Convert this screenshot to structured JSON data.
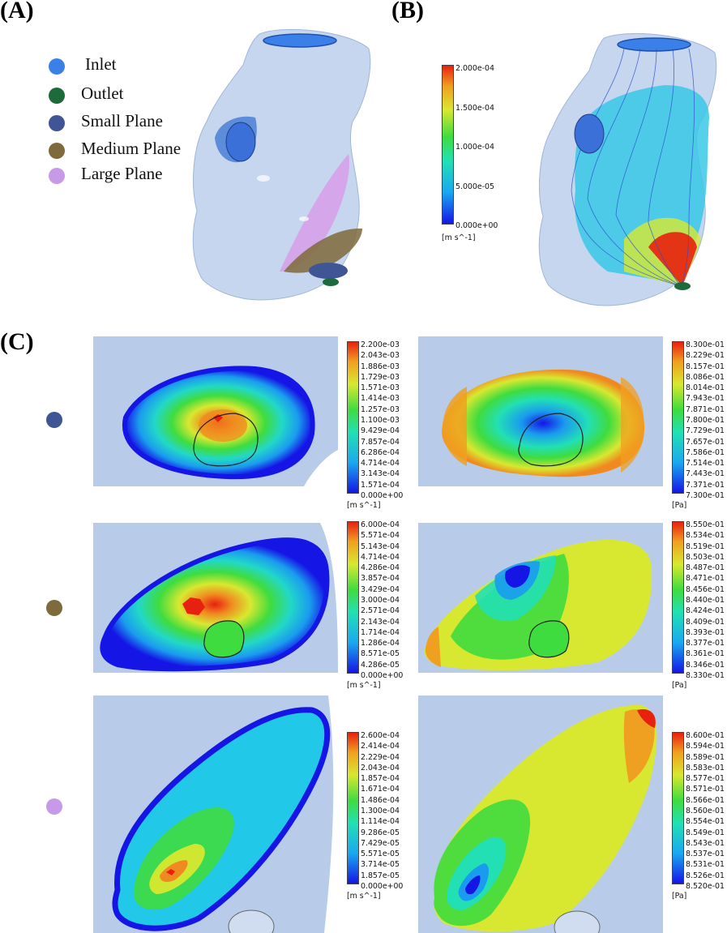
{
  "panels": {
    "a": "(A)",
    "b": "(B)",
    "c": "(C)"
  },
  "legend": [
    {
      "label": "Inlet",
      "color": "#3a80e8"
    },
    {
      "label": "Outlet",
      "color": "#1d6b3a"
    },
    {
      "label": "Small Plane",
      "color": "#3f5596"
    },
    {
      "label": "Medium Plane",
      "color": "#7e6a3a"
    },
    {
      "label": "Large Plane",
      "color": "#c79ae8"
    }
  ],
  "streamline_colorbar": {
    "ticks": [
      "2.000e-04",
      "1.500e-04",
      "1.000e-04",
      "5.000e-05",
      "0.000e+00"
    ],
    "unit": "[m s^-1]"
  },
  "rows": [
    {
      "plane": "Small Plane",
      "dot_color": "#3f5596",
      "velocity": {
        "ticks": [
          "2.200e-03",
          "2.043e-03",
          "1.886e-03",
          "1.729e-03",
          "1.571e-03",
          "1.414e-03",
          "1.257e-03",
          "1.100e-03",
          "9.429e-04",
          "7.857e-04",
          "6.286e-04",
          "4.714e-04",
          "3.143e-04",
          "1.571e-04",
          "0.000e+00"
        ],
        "unit": "[m s^-1]"
      },
      "pressure": {
        "ticks": [
          "8.300e-01",
          "8.229e-01",
          "8.157e-01",
          "8.086e-01",
          "8.014e-01",
          "7.943e-01",
          "7.871e-01",
          "7.800e-01",
          "7.729e-01",
          "7.657e-01",
          "7.586e-01",
          "7.514e-01",
          "7.443e-01",
          "7.371e-01",
          "7.300e-01"
        ],
        "unit": "[Pa]"
      }
    },
    {
      "plane": "Medium Plane",
      "dot_color": "#7e6a3a",
      "velocity": {
        "ticks": [
          "6.000e-04",
          "5.571e-04",
          "5.143e-04",
          "4.714e-04",
          "4.286e-04",
          "3.857e-04",
          "3.429e-04",
          "3.000e-04",
          "2.571e-04",
          "2.143e-04",
          "1.714e-04",
          "1.286e-04",
          "8.571e-05",
          "4.286e-05",
          "0.000e+00"
        ],
        "unit": "[m s^-1]"
      },
      "pressure": {
        "ticks": [
          "8.550e-01",
          "8.534e-01",
          "8.519e-01",
          "8.503e-01",
          "8.487e-01",
          "8.471e-01",
          "8.456e-01",
          "8.440e-01",
          "8.424e-01",
          "8.409e-01",
          "8.393e-01",
          "8.377e-01",
          "8.361e-01",
          "8.346e-01",
          "8.330e-01"
        ],
        "unit": "[Pa]"
      }
    },
    {
      "plane": "Large Plane",
      "dot_color": "#c79ae8",
      "velocity": {
        "ticks": [
          "2.600e-04",
          "2.414e-04",
          "2.229e-04",
          "2.043e-04",
          "1.857e-04",
          "1.671e-04",
          "1.486e-04",
          "1.300e-04",
          "1.114e-04",
          "9.286e-05",
          "7.429e-05",
          "5.571e-05",
          "3.714e-05",
          "1.857e-05",
          "0.000e+00"
        ],
        "unit": "[m s^-1]"
      },
      "pressure": {
        "ticks": [
          "8.600e-01",
          "8.594e-01",
          "8.589e-01",
          "8.583e-01",
          "8.577e-01",
          "8.571e-01",
          "8.566e-01",
          "8.560e-01",
          "8.554e-01",
          "8.549e-01",
          "8.543e-01",
          "8.537e-01",
          "8.531e-01",
          "8.526e-01",
          "8.520e-01"
        ],
        "unit": "[Pa]"
      }
    }
  ]
}
